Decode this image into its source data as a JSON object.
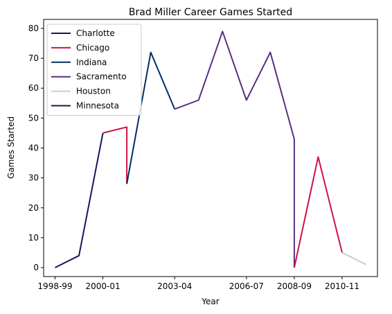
{
  "chart_data": {
    "type": "line",
    "title": "Brad Miller  Career Games Started",
    "xlabel": "Year",
    "ylabel": "Games Started",
    "seasons": [
      "1998-99",
      "1999-00",
      "2000-01",
      "2001-02",
      "2002-03",
      "2003-04",
      "2004-05",
      "2005-06",
      "2006-07",
      "2007-08",
      "2008-09",
      "2009-10",
      "2010-11",
      "2011-12"
    ],
    "x_ticks": [
      "1998-99",
      "2000-01",
      "2003-04",
      "2006-07",
      "2008-09",
      "2010-11"
    ],
    "ylim": [
      -3,
      83
    ],
    "y_ticks": [
      0,
      10,
      20,
      30,
      40,
      50,
      60,
      70,
      80
    ],
    "grid": false,
    "legend_position": "upper-left",
    "series": [
      {
        "name": "Charlotte",
        "color": "#1d1160",
        "points": [
          [
            "1998-99",
            0
          ],
          [
            "1999-00",
            4
          ],
          [
            "2000-01",
            45
          ]
        ]
      },
      {
        "name": "Chicago",
        "color": "#ce1141",
        "points": [
          [
            "2000-01",
            45
          ],
          [
            "2001-02",
            47
          ],
          [
            "2001-02",
            28
          ]
        ]
      },
      {
        "name": "Indiana",
        "color": "#002d62",
        "points": [
          [
            "2001-02",
            28
          ],
          [
            "2002-03",
            72
          ],
          [
            "2003-04",
            53
          ]
        ]
      },
      {
        "name": "Sacramento",
        "color": "#5a2d81",
        "points": [
          [
            "2003-04",
            53
          ],
          [
            "2004-05",
            56
          ],
          [
            "2005-06",
            79
          ],
          [
            "2006-07",
            56
          ],
          [
            "2007-08",
            72
          ],
          [
            "2008-09",
            43
          ],
          [
            "2008-09",
            0
          ]
        ]
      },
      {
        "name": "Chicago",
        "color": "#ce1141",
        "legend": false,
        "points": [
          [
            "2008-09",
            0
          ],
          [
            "2009-10",
            37
          ],
          [
            "2010-11",
            5
          ]
        ]
      },
      {
        "name": "Houston",
        "color": "#c4ced4",
        "points": [
          [
            "2010-11",
            5
          ],
          [
            "2011-12",
            1
          ]
        ]
      },
      {
        "name": "Minnesota",
        "color": "#0c2340",
        "points": []
      }
    ]
  }
}
